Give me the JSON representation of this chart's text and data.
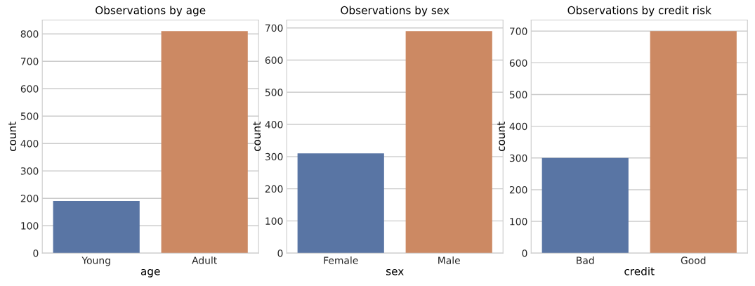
{
  "chart_data": [
    {
      "type": "bar",
      "title": "Observations by age",
      "xlabel": "age",
      "ylabel": "count",
      "categories": [
        "Young",
        "Adult"
      ],
      "values": [
        190,
        810
      ],
      "colors": [
        "#5975a4",
        "#cc8963"
      ],
      "ylim": [
        0,
        850.5
      ],
      "yticks": [
        0,
        100,
        200,
        300,
        400,
        500,
        600,
        700,
        800
      ],
      "grid": "y"
    },
    {
      "type": "bar",
      "title": "Observations by sex",
      "xlabel": "sex",
      "ylabel": "count",
      "categories": [
        "Female",
        "Male"
      ],
      "values": [
        310,
        690
      ],
      "colors": [
        "#5975a4",
        "#cc8963"
      ],
      "ylim": [
        0,
        724.5
      ],
      "yticks": [
        0,
        100,
        200,
        300,
        400,
        500,
        600,
        700
      ],
      "grid": "y"
    },
    {
      "type": "bar",
      "title": "Observations by credit risk",
      "xlabel": "credit",
      "ylabel": "count",
      "categories": [
        "Bad",
        "Good"
      ],
      "values": [
        300,
        700
      ],
      "colors": [
        "#5975a4",
        "#cc8963"
      ],
      "ylim": [
        0,
        735
      ],
      "yticks": [
        0,
        100,
        200,
        300,
        400,
        500,
        600,
        700
      ],
      "grid": "y"
    }
  ]
}
